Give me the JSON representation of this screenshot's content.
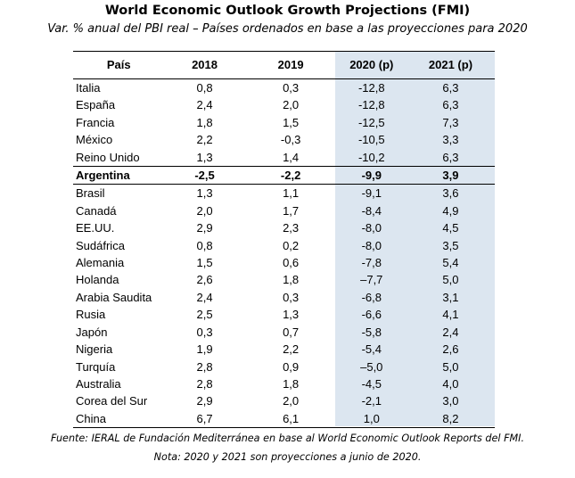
{
  "title": "World Economic Outlook Growth Projections (FMI)",
  "subtitle": "Var. % anual del PBI real – Países ordenados en base a las proyecciones para 2020",
  "table": {
    "headers": [
      "País",
      "2018",
      "2019",
      "2020 (p)",
      "2021 (p)"
    ],
    "rows": [
      [
        "Italia",
        "0,8",
        "0,3",
        "-12,8",
        "6,3"
      ],
      [
        "España",
        "2,4",
        "2,0",
        "-12,8",
        "6,3"
      ],
      [
        "Francia",
        "1,8",
        "1,5",
        "-12,5",
        "7,3"
      ],
      [
        "México",
        "2,2",
        "-0,3",
        "-10,5",
        "3,3"
      ],
      [
        "Reino Unido",
        "1,3",
        "1,4",
        "-10,2",
        "6,3"
      ],
      [
        "Argentina",
        "-2,5",
        "-2,2",
        "-9,9",
        "3,9"
      ],
      [
        "Brasil",
        "1,3",
        "1,1",
        "-9,1",
        "3,6"
      ],
      [
        "Canadá",
        "2,0",
        "1,7",
        "-8,4",
        "4,9"
      ],
      [
        "EE.UU.",
        "2,9",
        "2,3",
        "-8,0",
        "4,5"
      ],
      [
        "Sudáfrica",
        "0,8",
        "0,2",
        "-8,0",
        "3,5"
      ],
      [
        "Alemania",
        "1,5",
        "0,6",
        "-7,8",
        "5,4"
      ],
      [
        "Holanda",
        "2,6",
        "1,8",
        "–7,7",
        "5,0"
      ],
      [
        "Arabia Saudita",
        "2,4",
        "0,3",
        "-6,8",
        "3,1"
      ],
      [
        "Rusia",
        "2,5",
        "1,3",
        "-6,6",
        "4,1"
      ],
      [
        "Japón",
        "0,3",
        "0,7",
        "-5,8",
        "2,4"
      ],
      [
        "Nigeria",
        "1,9",
        "2,2",
        "-5,4",
        "2,6"
      ],
      [
        "Turquía",
        "2,8",
        "0,9",
        "–5,0",
        "5,0"
      ],
      [
        "Australia",
        "2,8",
        "1,8",
        "-4,5",
        "4,0"
      ],
      [
        "Corea del Sur",
        "2,9",
        "2,0",
        "-2,1",
        "3,0"
      ],
      [
        "China",
        "6,7",
        "6,1",
        "1,0",
        "8,2"
      ]
    ]
  },
  "source": "Fuente: IERAL de Fundación Mediterránea en base al World Economic Outlook Reports del FMI.",
  "note": "Nota: 2020 y 2021 son proyecciones a junio de 2020.",
  "colors": {
    "projection_shade": "#dce6f0"
  }
}
